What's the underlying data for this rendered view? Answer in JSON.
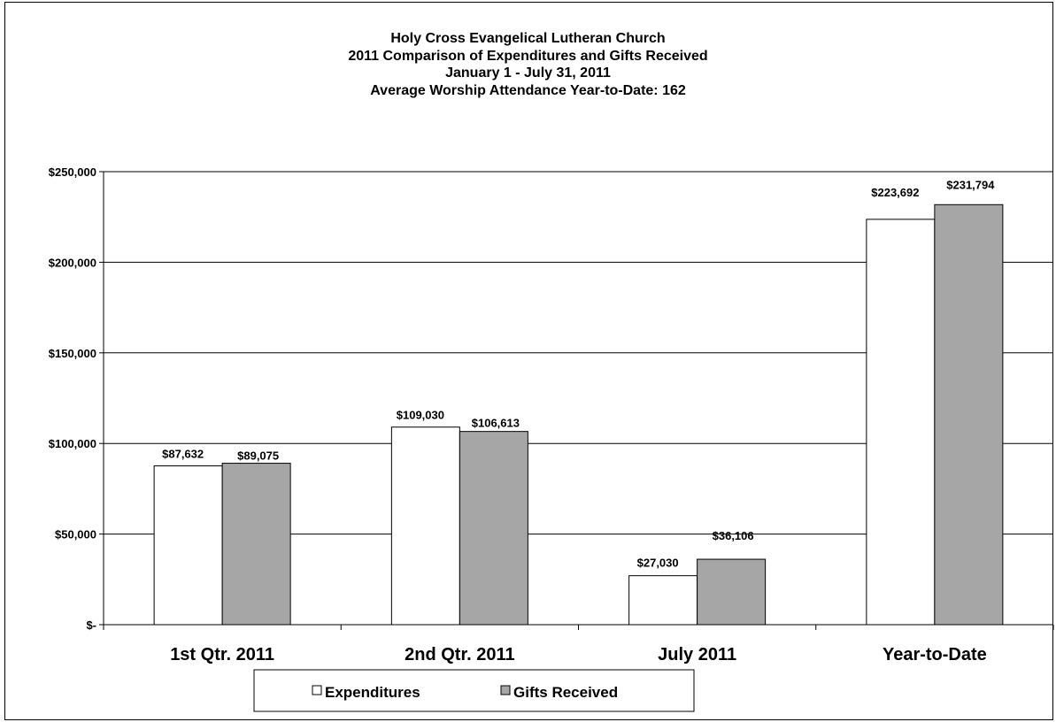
{
  "chart_data": {
    "type": "bar",
    "title": [
      "Holy Cross Evangelical Lutheran Church",
      "2011 Comparison of Expenditures and Gifts Received",
      "January 1 - July 31, 2011",
      "Average Worship Attendance Year-to-Date: 162"
    ],
    "categories": [
      "1st Qtr. 2011",
      "2nd Qtr. 2011",
      "July 2011",
      "Year-to-Date"
    ],
    "series": [
      {
        "name": "Expenditures",
        "values": [
          87632,
          109030,
          27030,
          223692
        ],
        "labels": [
          "$87,632",
          "$109,030",
          "$27,030",
          "$223,692"
        ],
        "color": "#ffffff"
      },
      {
        "name": "Gifts Received",
        "values": [
          89075,
          106613,
          36106,
          231794
        ],
        "labels": [
          "$89,075",
          "$106,613",
          "$36,106",
          "$231,794"
        ],
        "color": "#a6a6a6"
      }
    ],
    "ylim": [
      0,
      250000
    ],
    "yticks": [
      0,
      50000,
      100000,
      150000,
      200000,
      250000
    ],
    "ytick_labels": [
      "$-",
      "$50,000",
      "$100,000",
      "$150,000",
      "$200,000",
      "$250,000"
    ],
    "grid": true,
    "legend_position": "bottom",
    "xlabel": "",
    "ylabel": ""
  }
}
